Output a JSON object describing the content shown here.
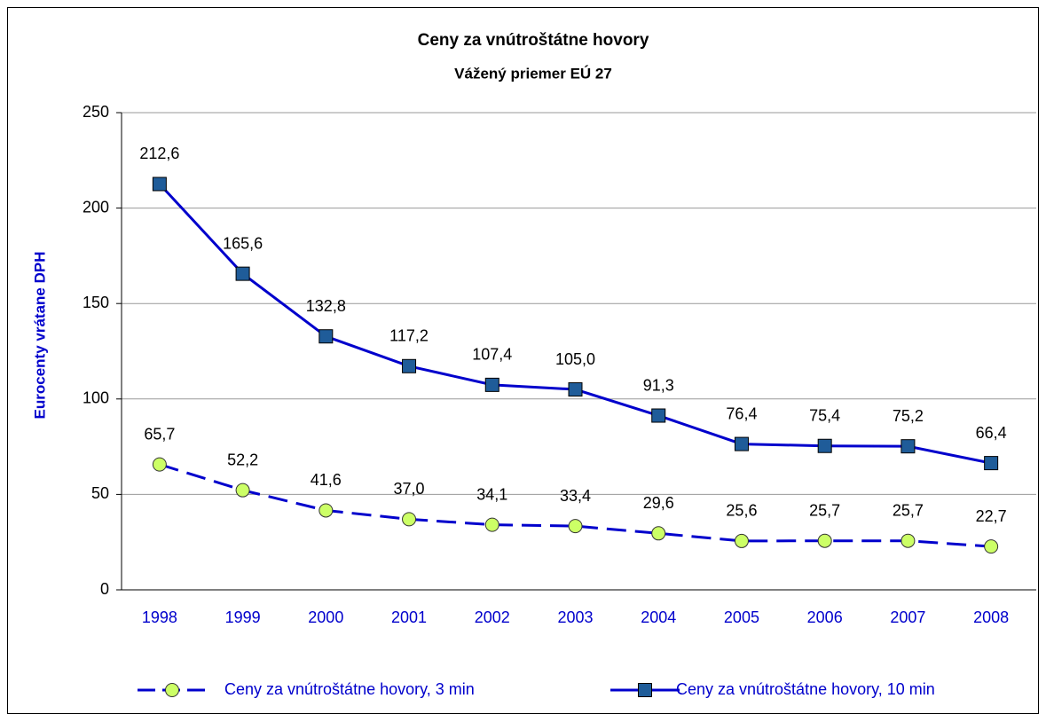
{
  "chart_data": {
    "type": "line",
    "title": "Ceny za vnútroštátne hovory",
    "subtitle": "Vážený priemer EÚ 27",
    "y_label": "Eurocenty vrátane DPH",
    "categories": [
      "1998",
      "1999",
      "2000",
      "2001",
      "2002",
      "2003",
      "2004",
      "2005",
      "2006",
      "2007",
      "2008"
    ],
    "series": [
      {
        "name": "Ceny za vnútroštátne hovory, 3 min",
        "color": "#0000cc",
        "marker_color": "#ccff66",
        "line_style": "dashed",
        "marker": "circle",
        "values": [
          65.7,
          52.2,
          41.6,
          37.0,
          34.1,
          33.4,
          29.6,
          25.6,
          25.7,
          25.7,
          22.7
        ],
        "value_labels": [
          "65,7",
          "52,2",
          "41,6",
          "37,0",
          "34,1",
          "33,4",
          "29,6",
          "25,6",
          "25,7",
          "25,7",
          "22,7"
        ]
      },
      {
        "name": "Ceny za vnútroštátne hovory, 10 min",
        "color": "#0000cc",
        "marker_color": "#1f5c99",
        "line_style": "solid",
        "marker": "square",
        "values": [
          212.6,
          165.6,
          132.8,
          117.2,
          107.4,
          105.0,
          91.3,
          76.4,
          75.4,
          75.2,
          66.4
        ],
        "value_labels": [
          "212,6",
          "165,6",
          "132,8",
          "117,2",
          "107,4",
          "105,0",
          "91,3",
          "76,4",
          "75,4",
          "75,2",
          "66,4"
        ]
      }
    ],
    "ylim": [
      0,
      250
    ],
    "yticks": [
      0,
      50,
      100,
      150,
      200,
      250
    ],
    "grid": true,
    "legend": "bottom"
  }
}
